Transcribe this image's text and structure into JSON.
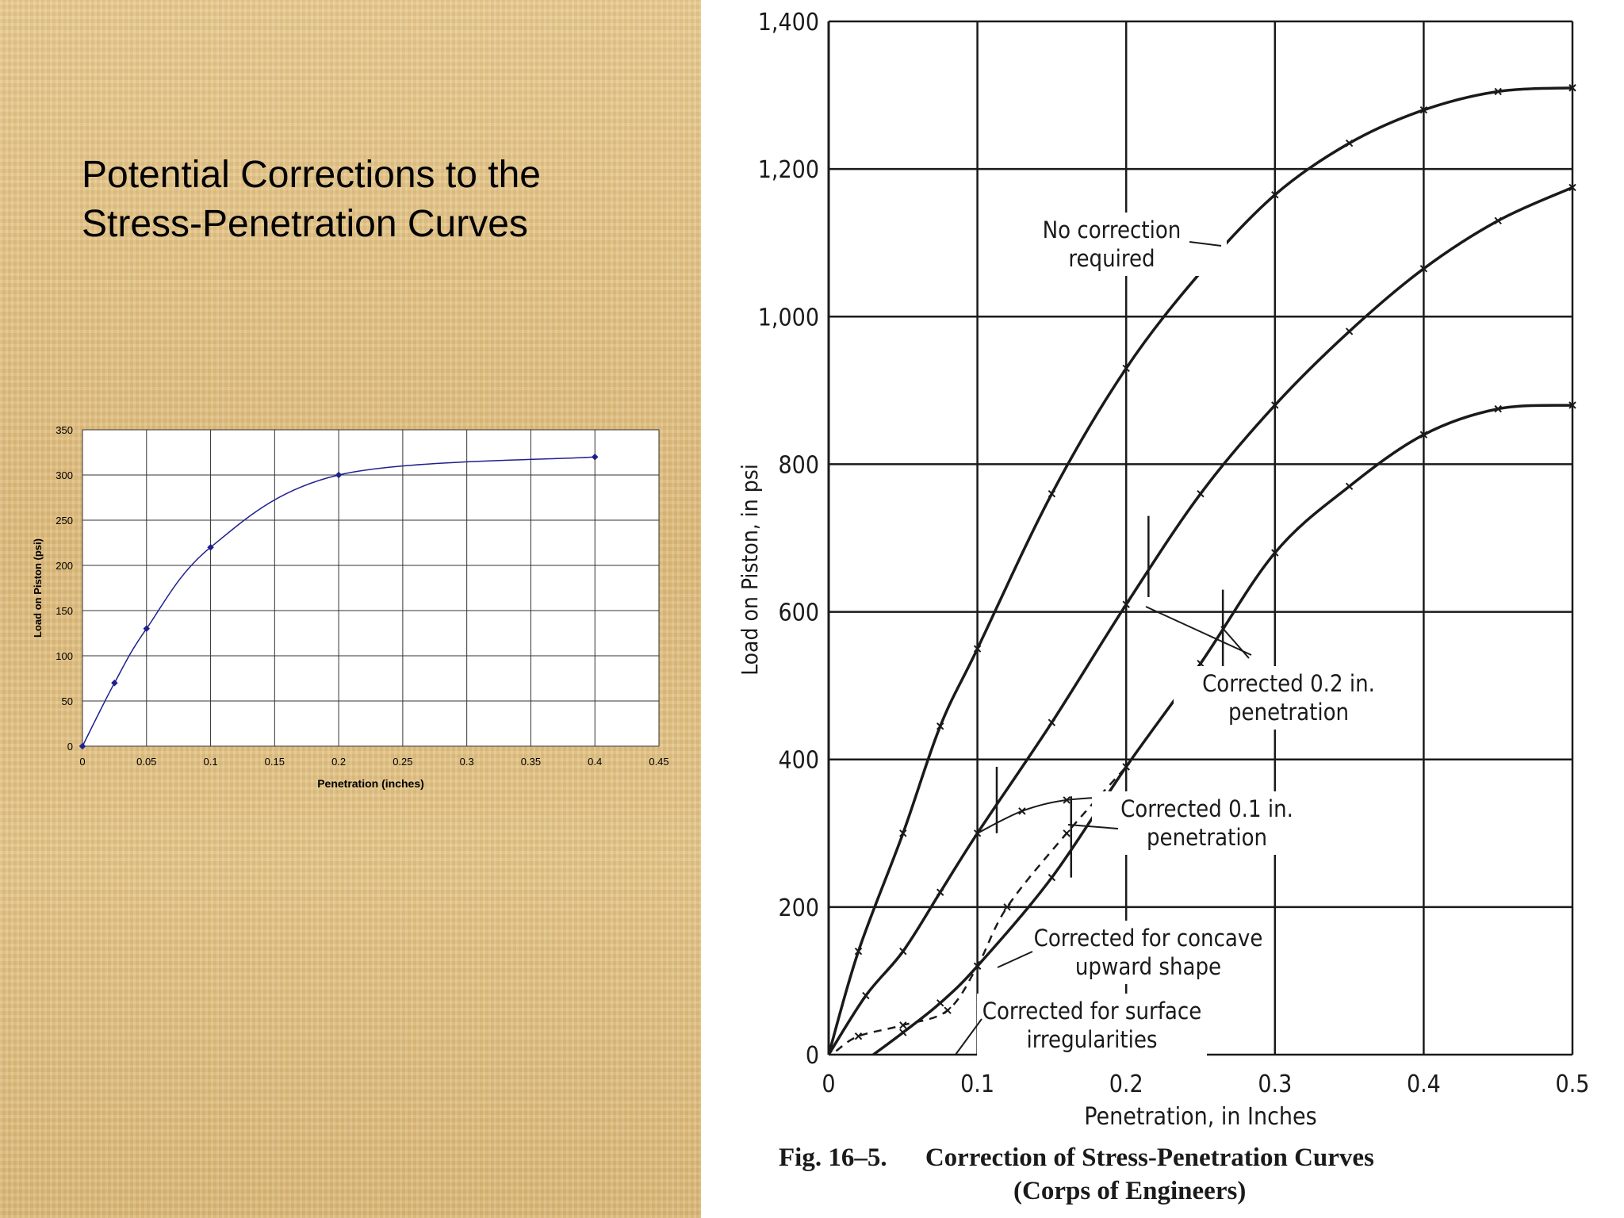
{
  "slide": {
    "title_line1": "Potential Corrections to the",
    "title_line2": "Stress-Penetration Curves"
  },
  "chart_data": [
    {
      "type": "line",
      "title": "",
      "xlabel": "Penetration (inches)",
      "ylabel": "Load on Piston (psi)",
      "xlim": [
        0,
        0.45
      ],
      "ylim": [
        0,
        350
      ],
      "x_ticks": [
        "0",
        "0.05",
        "0.1",
        "0.15",
        "0.2",
        "0.25",
        "0.3",
        "0.35",
        "0.4",
        "0.45"
      ],
      "y_ticks": [
        "0",
        "50",
        "100",
        "150",
        "200",
        "250",
        "300",
        "350"
      ],
      "grid": true,
      "legend": "none",
      "series": [
        {
          "x": [
            0,
            0.025,
            0.05,
            0.1,
            0.2,
            0.4
          ],
          "y": [
            0,
            70,
            130,
            220,
            300,
            320
          ],
          "color": "#1f1f8f"
        }
      ]
    },
    {
      "type": "line",
      "title": "",
      "xlabel": "Penetration, in Inches",
      "ylabel": "Load on Piston, in psi",
      "xlim": [
        0,
        0.5
      ],
      "ylim": [
        0,
        1400
      ],
      "x_ticks": [
        "0",
        "0.1",
        "0.2",
        "0.3",
        "0.4",
        "0.5"
      ],
      "y_ticks": [
        "0",
        "200",
        "400",
        "600",
        "800",
        "1,000",
        "1,200",
        "1,400"
      ],
      "grid": true,
      "series": [
        {
          "x": [
            0,
            0.02,
            0.05,
            0.075,
            0.1,
            0.15,
            0.2,
            0.25,
            0.3,
            0.35,
            0.4,
            0.45,
            0.5
          ],
          "y": [
            0,
            140,
            300,
            445,
            550,
            760,
            930,
            1060,
            1165,
            1235,
            1280,
            1305,
            1310
          ]
        },
        {
          "x": [
            0,
            0.025,
            0.05,
            0.075,
            0.1,
            0.15,
            0.2,
            0.25,
            0.3,
            0.35,
            0.4,
            0.45,
            0.5
          ],
          "y": [
            0,
            80,
            140,
            220,
            300,
            450,
            610,
            760,
            880,
            980,
            1065,
            1130,
            1175
          ]
        },
        {
          "x": [
            0.03,
            0.05,
            0.075,
            0.1,
            0.15,
            0.2,
            0.25,
            0.3,
            0.35,
            0.4,
            0.45,
            0.5
          ],
          "y": [
            0,
            30,
            70,
            120,
            240,
            390,
            530,
            680,
            770,
            840,
            875,
            880
          ]
        },
        {
          "x": [
            0.005,
            0.02,
            0.05,
            0.08,
            0.1,
            0.12,
            0.16,
            0.2
          ],
          "y": [
            5,
            25,
            40,
            60,
            120,
            200,
            300,
            390
          ]
        },
        {
          "x": [
            0.1,
            0.13,
            0.16,
            0.2
          ],
          "y": [
            300,
            330,
            345,
            350
          ]
        }
      ],
      "annotations": [
        {
          "text_line1": "No correction",
          "text_line2": "required"
        },
        {
          "text_line1": "Corrected 0.2 in.",
          "text_line2": "penetration"
        },
        {
          "text_line1": "Corrected 0.1 in.",
          "text_line2": "penetration"
        },
        {
          "text_line1": "Corrected for concave",
          "text_line2": "upward shape"
        },
        {
          "text_line1": "Corrected for surface",
          "text_line2": "irregularities"
        }
      ]
    }
  ],
  "caption": {
    "fig_label": "Fig. 16–5.",
    "line1": "Correction of Stress-Penetration Curves",
    "line2": "(Corps of Engineers)"
  },
  "colors": {
    "excel_series": "#1f1f8f",
    "scan_ink": "#1a1a1a",
    "background_left": "#e3c58a"
  }
}
